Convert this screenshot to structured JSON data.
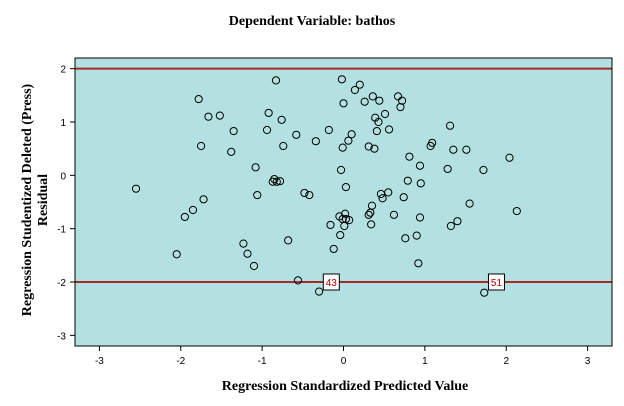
{
  "chart_data": {
    "type": "scatter",
    "title": "Dependent Variable: bathos",
    "xlabel": "Regression Standardized Predicted Value",
    "ylabel_lines": [
      "Regression Studentized Deleted (Press)",
      "Residual"
    ],
    "xlim": [
      -3.3,
      3.3
    ],
    "ylim": [
      -3.2,
      2.2
    ],
    "xticks": [
      -3,
      -2,
      -1,
      0,
      1,
      2,
      3
    ],
    "yticks": [
      -3,
      -2,
      -1,
      0,
      1,
      2
    ],
    "reference_lines_y": [
      2,
      -2
    ],
    "colors": {
      "plot_background": "#b3e0e0",
      "reference_line": "#a52a2a",
      "point_stroke": "#000000"
    },
    "points": [
      [
        -2.55,
        -0.25
      ],
      [
        -2.05,
        -1.48
      ],
      [
        -1.95,
        -0.78
      ],
      [
        -1.85,
        -0.65
      ],
      [
        -1.78,
        1.43
      ],
      [
        -1.75,
        0.55
      ],
      [
        -1.72,
        -0.45
      ],
      [
        -1.66,
        1.1
      ],
      [
        -1.52,
        1.12
      ],
      [
        -1.38,
        0.44
      ],
      [
        -1.35,
        0.83
      ],
      [
        -1.23,
        -1.28
      ],
      [
        -1.18,
        -1.47
      ],
      [
        -1.1,
        -1.7
      ],
      [
        -1.08,
        0.15
      ],
      [
        -1.06,
        -0.37
      ],
      [
        -0.94,
        0.85
      ],
      [
        -0.92,
        1.17
      ],
      [
        -0.87,
        -0.12
      ],
      [
        -0.85,
        -0.07
      ],
      [
        -0.82,
        -0.12
      ],
      [
        -0.83,
        1.78
      ],
      [
        -0.78,
        -0.11
      ],
      [
        -0.76,
        1.04
      ],
      [
        -0.74,
        0.55
      ],
      [
        -0.68,
        -1.22
      ],
      [
        -0.58,
        0.76
      ],
      [
        -0.56,
        -1.97
      ],
      [
        -0.48,
        -0.33
      ],
      [
        -0.42,
        -0.37
      ],
      [
        -0.34,
        0.64
      ],
      [
        -0.3,
        -2.18
      ],
      [
        -0.18,
        0.85
      ],
      [
        -0.16,
        -0.93
      ],
      [
        -0.12,
        -1.38
      ],
      [
        -0.05,
        -0.77
      ],
      [
        -0.04,
        -1.12
      ],
      [
        -0.03,
        0.1
      ],
      [
        -0.02,
        1.8
      ],
      [
        -0.01,
        -0.82
      ],
      [
        -0.01,
        0.52
      ],
      [
        0.0,
        1.35
      ],
      [
        0.01,
        -0.95
      ],
      [
        0.02,
        -0.72
      ],
      [
        0.03,
        -0.82
      ],
      [
        0.03,
        -0.22
      ],
      [
        0.06,
        0.65
      ],
      [
        0.07,
        -0.84
      ],
      [
        0.1,
        0.77
      ],
      [
        0.14,
        1.6
      ],
      [
        0.2,
        1.7
      ],
      [
        0.26,
        1.38
      ],
      [
        0.31,
        -0.74
      ],
      [
        0.31,
        0.54
      ],
      [
        0.33,
        -0.7
      ],
      [
        0.34,
        -0.92
      ],
      [
        0.35,
        -0.57
      ],
      [
        0.36,
        1.48
      ],
      [
        0.38,
        0.5
      ],
      [
        0.39,
        1.08
      ],
      [
        0.41,
        0.83
      ],
      [
        0.43,
        1.0
      ],
      [
        0.44,
        1.4
      ],
      [
        0.46,
        -0.35
      ],
      [
        0.48,
        -0.43
      ],
      [
        0.51,
        1.15
      ],
      [
        0.55,
        -0.32
      ],
      [
        0.56,
        0.86
      ],
      [
        0.62,
        -0.74
      ],
      [
        0.67,
        1.48
      ],
      [
        0.7,
        1.28
      ],
      [
        0.72,
        1.4
      ],
      [
        0.74,
        -0.41
      ],
      [
        0.76,
        -1.18
      ],
      [
        0.79,
        -0.1
      ],
      [
        0.81,
        0.35
      ],
      [
        0.9,
        -1.13
      ],
      [
        0.92,
        -1.65
      ],
      [
        0.94,
        -0.79
      ],
      [
        0.94,
        0.18
      ],
      [
        0.95,
        -0.15
      ],
      [
        1.07,
        0.55
      ],
      [
        1.09,
        0.61
      ],
      [
        1.28,
        0.12
      ],
      [
        1.31,
        0.93
      ],
      [
        1.32,
        -0.95
      ],
      [
        1.35,
        0.48
      ],
      [
        1.4,
        -0.86
      ],
      [
        1.51,
        0.48
      ],
      [
        1.55,
        -0.53
      ],
      [
        1.72,
        0.1
      ],
      [
        1.73,
        -2.2
      ],
      [
        2.04,
        0.33
      ],
      [
        2.13,
        -0.67
      ]
    ],
    "annotations": [
      {
        "label": "43",
        "x": -0.15,
        "y": -2.0
      },
      {
        "label": "51",
        "x": 1.88,
        "y": -2.0
      }
    ]
  }
}
